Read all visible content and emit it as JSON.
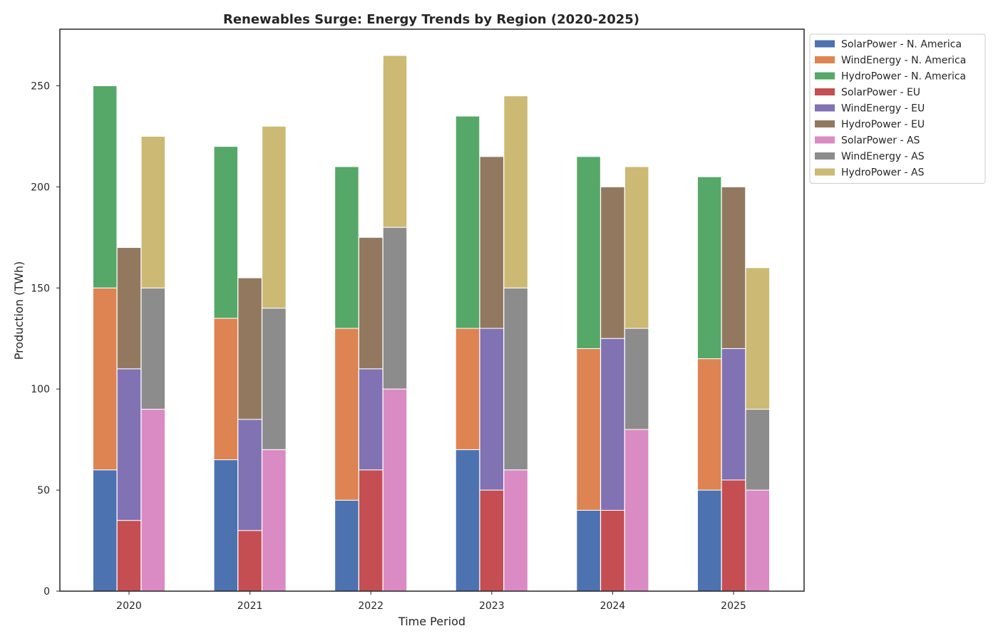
{
  "chart_data": {
    "type": "bar",
    "stacked": true,
    "grouped_by": "region",
    "title": "Renewables Surge: Energy Trends by Region (2020-2025)",
    "xlabel": "Time Period",
    "ylabel": "Production (TWh)",
    "categories": [
      "2020",
      "2021",
      "2022",
      "2023",
      "2024",
      "2025"
    ],
    "ylim": [
      0,
      278
    ],
    "yticks": [
      0,
      50,
      100,
      150,
      200,
      250
    ],
    "grid": false,
    "legend_position": "outside-top-right",
    "groups": [
      {
        "region": "N. America",
        "series": [
          {
            "name": "SolarPower - N. America",
            "color": "#4c72b0",
            "values": [
              60,
              65,
              45,
              70,
              40,
              50
            ]
          },
          {
            "name": "WindEnergy - N. America",
            "color": "#dd8452",
            "values": [
              90,
              70,
              85,
              60,
              80,
              65
            ]
          },
          {
            "name": "HydroPower - N. America",
            "color": "#55a868",
            "values": [
              100,
              85,
              80,
              105,
              95,
              90
            ]
          }
        ]
      },
      {
        "region": "EU",
        "series": [
          {
            "name": "SolarPower - EU",
            "color": "#c44e52",
            "values": [
              35,
              30,
              60,
              50,
              40,
              55
            ]
          },
          {
            "name": "WindEnergy - EU",
            "color": "#8172b3",
            "values": [
              75,
              55,
              50,
              80,
              85,
              65
            ]
          },
          {
            "name": "HydroPower - EU",
            "color": "#937860",
            "values": [
              60,
              70,
              65,
              85,
              75,
              80
            ]
          }
        ]
      },
      {
        "region": "AS",
        "series": [
          {
            "name": "SolarPower - AS",
            "color": "#da8bc3",
            "values": [
              90,
              70,
              100,
              60,
              80,
              50
            ]
          },
          {
            "name": "WindEnergy - AS",
            "color": "#8c8c8c",
            "values": [
              60,
              70,
              80,
              90,
              50,
              40
            ]
          },
          {
            "name": "HydroPower - AS",
            "color": "#ccb974",
            "values": [
              75,
              90,
              85,
              95,
              80,
              70
            ]
          }
        ]
      }
    ]
  }
}
